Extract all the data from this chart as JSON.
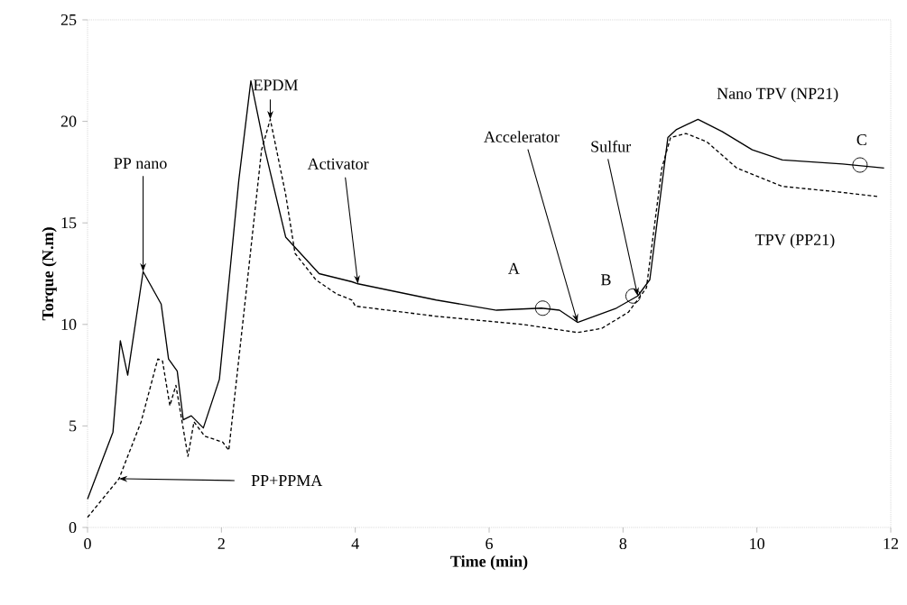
{
  "chart_data": {
    "type": "line",
    "xlabel": "Time (min)",
    "ylabel": "Torque (N.m)",
    "xlim": [
      0,
      12
    ],
    "ylim": [
      0,
      25
    ],
    "xticks": [
      0,
      2,
      4,
      6,
      8,
      10,
      12
    ],
    "yticks": [
      0,
      5,
      10,
      15,
      20,
      25
    ],
    "grid": false,
    "legend": false,
    "marker": "none",
    "series": [
      {
        "name": "Nano TPV (NP21)",
        "color": "#000000",
        "line_style": "solid",
        "x": [
          0.0,
          0.38,
          0.49,
          0.6,
          0.83,
          1.1,
          1.21,
          1.34,
          1.43,
          1.55,
          1.73,
          1.97,
          2.26,
          2.44,
          2.65,
          2.96,
          3.46,
          3.95,
          4.04,
          5.21,
          6.11,
          6.78,
          7.05,
          7.32,
          7.9,
          8.22,
          8.4,
          8.67,
          8.8,
          9.12,
          9.48,
          9.93,
          10.38,
          11.28,
          11.9
        ],
        "values": [
          1.4,
          4.7,
          9.2,
          7.5,
          12.6,
          11.0,
          8.3,
          7.7,
          5.3,
          5.5,
          4.9,
          7.3,
          17.1,
          22.0,
          18.6,
          14.3,
          12.5,
          12.1,
          12.0,
          11.2,
          10.7,
          10.8,
          10.7,
          10.1,
          10.8,
          11.4,
          12.2,
          19.2,
          19.6,
          20.1,
          19.5,
          18.6,
          18.1,
          17.9,
          17.7
        ]
      },
      {
        "name": "TPV (PP21)",
        "color": "#000000",
        "line_style": "dashed",
        "x": [
          0.0,
          0.47,
          0.8,
          1.05,
          1.12,
          1.23,
          1.32,
          1.5,
          1.59,
          1.75,
          2.02,
          2.11,
          2.38,
          2.6,
          2.73,
          2.96,
          3.1,
          3.41,
          3.72,
          3.95,
          4.0,
          5.21,
          6.5,
          7.32,
          7.68,
          8.08,
          8.35,
          8.58,
          8.71,
          8.94,
          9.25,
          9.7,
          10.38,
          11.28,
          11.8
        ],
        "values": [
          0.5,
          2.4,
          5.2,
          8.3,
          8.2,
          6.0,
          7.0,
          3.5,
          5.2,
          4.5,
          4.2,
          3.8,
          11.9,
          18.6,
          20.1,
          16.4,
          13.5,
          12.2,
          11.5,
          11.2,
          10.9,
          10.4,
          10.0,
          9.6,
          9.8,
          10.6,
          11.8,
          17.7,
          19.2,
          19.4,
          19.0,
          17.7,
          16.8,
          16.5,
          16.3
        ]
      }
    ],
    "annotations": [
      {
        "text": "PP nano",
        "x": 0.83,
        "y": 12.6
      },
      {
        "text": "EPDM",
        "x": 2.73,
        "y": 20.1
      },
      {
        "text": "Activator",
        "x": 4.04,
        "y": 12.0
      },
      {
        "text": "Accelerator",
        "x": 7.32,
        "y": 10.1
      },
      {
        "text": "Sulfur",
        "x": 8.22,
        "y": 11.4
      },
      {
        "text": "PP+PPMA",
        "x": 0.47,
        "y": 2.4
      },
      {
        "text": "A",
        "x": 6.8,
        "y": 10.8
      },
      {
        "text": "B",
        "x": 8.15,
        "y": 11.4
      },
      {
        "text": "C",
        "x": 11.54,
        "y": 17.85
      }
    ]
  }
}
